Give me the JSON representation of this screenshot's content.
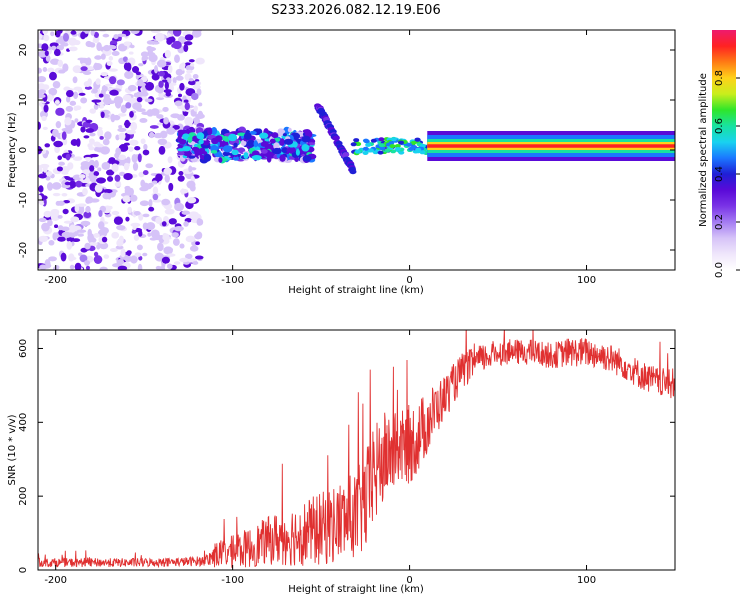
{
  "title": "S233.2026.082.12.19.E06",
  "colors": {
    "snr_line": "#e03030",
    "axis": "#000000",
    "background": "#ffffff",
    "colormap": [
      "#ffffff",
      "#efe6fb",
      "#d6c3f8",
      "#a47cf2",
      "#7a33e6",
      "#5a0ad8",
      "#1f1fd6",
      "#1b78ff",
      "#19d2f0",
      "#18e3a0",
      "#2fe62a",
      "#c8ee1c",
      "#ffd21a",
      "#ff7a14",
      "#ff2222",
      "#ee1a6e"
    ]
  },
  "chart_data": [
    {
      "type": "heatmap",
      "title": "S233.2026.082.12.19.E06",
      "xlabel": "Height of straight line (km)",
      "ylabel": "Frequency (Hz)",
      "xlim": [
        -210,
        150
      ],
      "ylim": [
        -24,
        24
      ],
      "xticks": [
        -200,
        -100,
        0,
        100
      ],
      "yticks": [
        -20,
        -10,
        0,
        10,
        20
      ],
      "colorbar": {
        "label": "Normalized spectral amplitude",
        "range": [
          0,
          1
        ],
        "ticks": [
          "0.0",
          "0.2",
          "0.4",
          "0.6",
          "0.8"
        ]
      },
      "segments": [
        {
          "name": "noise",
          "x_range": [
            -210,
            -118
          ],
          "freq_center": 0,
          "freq_spread": 24,
          "amplitude": 0.1
        },
        {
          "name": "scatter-band",
          "x_range": [
            -130,
            -55
          ],
          "freq_center": 1,
          "freq_spread": 3,
          "amplitude": 0.35
        },
        {
          "name": "drift",
          "x_range": [
            -52,
            -32
          ],
          "freq_start": 9,
          "freq_end": -4,
          "amplitude": 0.3
        },
        {
          "name": "settling",
          "x_range": [
            -32,
            10
          ],
          "freq_center": 0.8,
          "freq_spread": 1.5,
          "amplitude": 0.55
        },
        {
          "name": "carrier",
          "x_range": [
            10,
            150
          ],
          "freq_center": 0.8,
          "freq_spread": 0.6,
          "amplitude": 0.95
        }
      ]
    },
    {
      "type": "line",
      "xlabel": "Height of straight line (km)",
      "ylabel": "SNR (10 * v/v)",
      "xlim": [
        -210,
        150
      ],
      "ylim": [
        0,
        650
      ],
      "xticks": [
        -200,
        -100,
        0,
        100
      ],
      "yticks": [
        0,
        200,
        400,
        600
      ],
      "series": [
        {
          "name": "SNR",
          "x": [
            -210,
            -190,
            -170,
            -150,
            -130,
            -115,
            -110,
            -100,
            -90,
            -80,
            -70,
            -60,
            -50,
            -40,
            -30,
            -25,
            -20,
            -15,
            -10,
            -5,
            0,
            5,
            10,
            20,
            30,
            40,
            50,
            60,
            70,
            80,
            90,
            100,
            110,
            120,
            130,
            140,
            150
          ],
          "y": [
            20,
            20,
            20,
            20,
            22,
            25,
            40,
            50,
            60,
            80,
            90,
            100,
            110,
            130,
            150,
            180,
            250,
            300,
            320,
            330,
            340,
            360,
            400,
            470,
            540,
            570,
            590,
            590,
            590,
            580,
            590,
            590,
            580,
            560,
            530,
            510,
            500
          ],
          "amp": [
            12,
            12,
            12,
            12,
            12,
            14,
            35,
            45,
            55,
            65,
            80,
            90,
            100,
            110,
            120,
            140,
            140,
            130,
            110,
            100,
            110,
            100,
            90,
            60,
            50,
            40,
            35,
            35,
            35,
            35,
            40,
            40,
            40,
            40,
            40,
            40,
            40
          ]
        }
      ]
    }
  ]
}
